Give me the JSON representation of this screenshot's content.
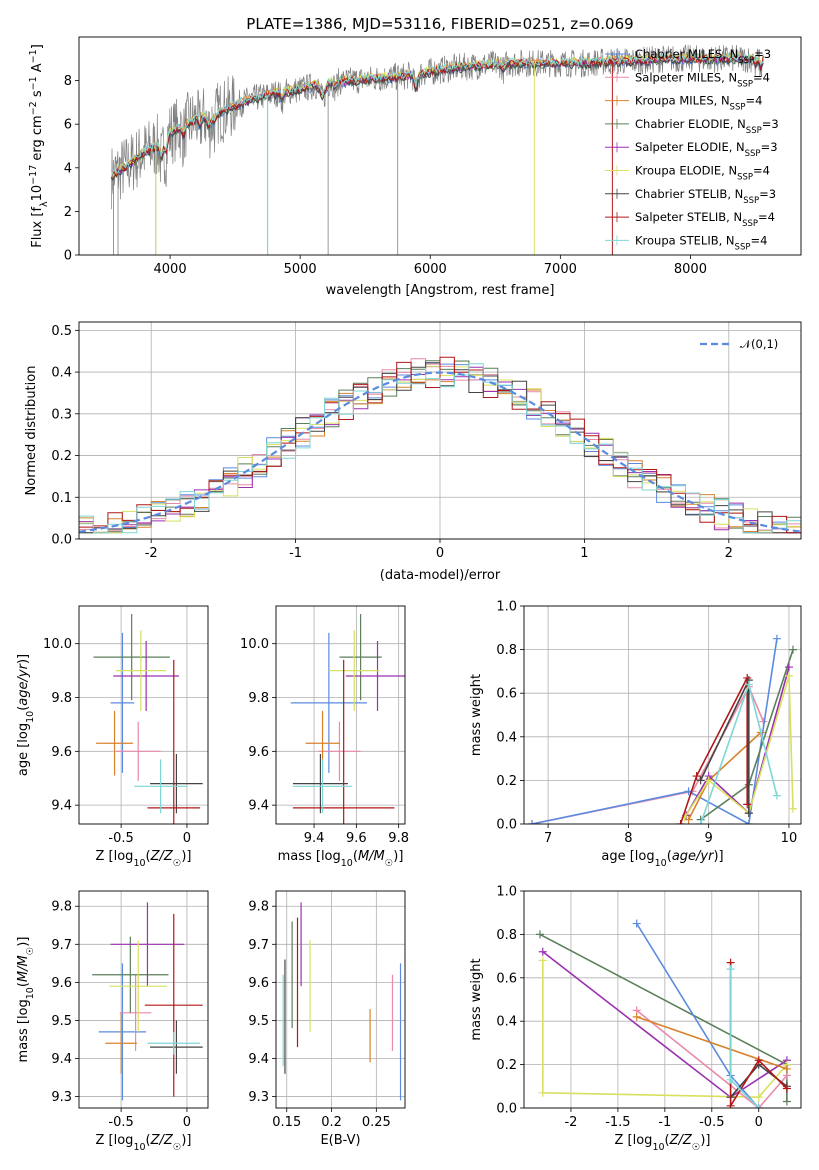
{
  "figure_title": "PLATE=1386, MJD=53116, FIBERID=0251, z=0.069",
  "colors": {
    "Chabrier MILES": "#5b8be0",
    "Salpeter MILES": "#e88aa8",
    "Kroupa MILES": "#d9822b",
    "Chabrier ELODIE": "#5a7f5a",
    "Salpeter ELODIE": "#9b30b0",
    "Kroupa ELODIE": "#d8e060",
    "Chabrier STELIB": "#444444",
    "Salpeter STELIB": "#b01818",
    "Kroupa STELIB": "#7fd6d6",
    "spectrum": "#808080",
    "gauss": "#5b8be0",
    "orange": "#e8701a"
  },
  "chart_data": [
    {
      "id": "spectrum",
      "type": "line",
      "title": "PLATE=1386, MJD=53116, FIBERID=0251, z=0.069",
      "xlabel": "wavelength [Angstrom, rest frame]",
      "ylabel": "Flux [f_λ 10^-17 erg cm^-2 s^-1 A^-1]",
      "xlim": [
        3300,
        8850
      ],
      "ylim": [
        0,
        10
      ],
      "xticks": [
        4000,
        5000,
        6000,
        7000,
        8000
      ],
      "yticks": [
        0,
        2,
        4,
        6,
        8
      ],
      "grid": false,
      "legend_position": "right",
      "legend": [
        {
          "label": "Chabrier MILES, N",
          "sub": "SSP",
          "suffix": "=3"
        },
        {
          "label": "Salpeter MILES, N",
          "sub": "SSP",
          "suffix": "=4"
        },
        {
          "label": "Kroupa MILES, N",
          "sub": "SSP",
          "suffix": "=4"
        },
        {
          "label": "Chabrier ELODIE, N",
          "sub": "SSP",
          "suffix": "=3"
        },
        {
          "label": "Salpeter ELODIE, N",
          "sub": "SSP",
          "suffix": "=3"
        },
        {
          "label": "Kroupa ELODIE, N",
          "sub": "SSP",
          "suffix": "=4"
        },
        {
          "label": "Chabrier STELIB, N",
          "sub": "SSP",
          "suffix": "=3"
        },
        {
          "label": "Salpeter STELIB, N",
          "sub": "SSP",
          "suffix": "=4"
        },
        {
          "label": "Kroupa STELIB, N",
          "sub": "SSP",
          "suffix": "=4"
        }
      ],
      "continuum": [
        [
          3550,
          3.6
        ],
        [
          3620,
          3.9
        ],
        [
          3700,
          4.2
        ],
        [
          3800,
          4.7
        ],
        [
          3900,
          5.0
        ],
        [
          4000,
          5.6
        ],
        [
          4200,
          6.2
        ],
        [
          4400,
          6.6
        ],
        [
          4600,
          7.1
        ],
        [
          4800,
          7.4
        ],
        [
          5000,
          7.6
        ],
        [
          5200,
          7.9
        ],
        [
          5400,
          8.0
        ],
        [
          5600,
          8.1
        ],
        [
          5800,
          8.2
        ],
        [
          6000,
          8.4
        ],
        [
          6200,
          8.6
        ],
        [
          6400,
          8.7
        ],
        [
          6600,
          8.8
        ],
        [
          6800,
          8.8
        ],
        [
          7000,
          8.8
        ],
        [
          7200,
          8.8
        ],
        [
          7400,
          8.9
        ],
        [
          7600,
          8.9
        ],
        [
          7800,
          9.0
        ],
        [
          8000,
          9.0
        ],
        [
          8200,
          9.0
        ],
        [
          8400,
          9.0
        ],
        [
          8550,
          9.0
        ]
      ]
    },
    {
      "id": "residuals",
      "type": "line",
      "xlabel": "(data-model)/error",
      "ylabel": "Normed distribution",
      "xlim": [
        -2.5,
        2.5
      ],
      "ylim": [
        0,
        0.52
      ],
      "xticks": [
        -2,
        -1,
        0,
        1,
        2
      ],
      "yticks": [
        0.0,
        0.1,
        0.2,
        0.3,
        0.4,
        0.5
      ],
      "grid": true,
      "legend_position": "top-right",
      "legend_label": "𝒩(0,1)",
      "gauss": {
        "mean": 0,
        "sigma": 1
      }
    },
    {
      "id": "age_vs_Z",
      "type": "scatter",
      "xlabel": "Z [log10(Z/Z☉)]",
      "ylabel": "age  [log10(age/yr)]",
      "xlim": [
        -0.82,
        0.16
      ],
      "ylim": [
        9.33,
        10.14
      ],
      "xticks": [
        -0.5,
        0.0
      ],
      "yticks": [
        9.4,
        9.6,
        9.8,
        10.0
      ],
      "grid": true,
      "points": [
        {
          "model": "Chabrier MILES",
          "x": -0.49,
          "xerr": 0.09,
          "y": 9.78,
          "yerr": 0.26
        },
        {
          "model": "Salpeter MILES",
          "x": -0.37,
          "xerr": 0.17,
          "y": 9.6,
          "yerr": 0.11
        },
        {
          "model": "Kroupa MILES",
          "x": -0.55,
          "xerr": 0.14,
          "y": 9.63,
          "yerr": 0.12
        },
        {
          "model": "Chabrier ELODIE",
          "x": -0.42,
          "xerr": 0.29,
          "y": 9.95,
          "yerr": 0.16
        },
        {
          "model": "Salpeter ELODIE",
          "x": -0.31,
          "xerr": 0.25,
          "y": 9.88,
          "yerr": 0.13
        },
        {
          "model": "Kroupa ELODIE",
          "x": -0.35,
          "xerr": 0.19,
          "y": 9.9,
          "yerr": 0.15
        },
        {
          "model": "Chabrier STELIB",
          "x": -0.08,
          "xerr": 0.2,
          "y": 9.48,
          "yerr": 0.11
        },
        {
          "model": "Salpeter STELIB",
          "x": -0.1,
          "xerr": 0.2,
          "y": 9.39,
          "yerr": 0.55
        },
        {
          "model": "Kroupa STELIB",
          "x": -0.2,
          "xerr": 0.2,
          "y": 9.47,
          "yerr": 0.1
        }
      ]
    },
    {
      "id": "age_vs_mass",
      "type": "scatter",
      "xlabel": "mass [log10(M/M☉)]",
      "xlim": [
        9.22,
        9.83
      ],
      "ylim": [
        9.33,
        10.14
      ],
      "xticks": [
        9.4,
        9.6,
        9.8
      ],
      "yticks": [
        9.4,
        9.6,
        9.8,
        10.0
      ],
      "grid": true,
      "points": [
        {
          "model": "Chabrier MILES",
          "x": 9.47,
          "xerr": 0.18,
          "y": 9.78,
          "yerr": 0.26
        },
        {
          "model": "Salpeter MILES",
          "x": 9.52,
          "xerr": 0.1,
          "y": 9.6,
          "yerr": 0.11
        },
        {
          "model": "Kroupa MILES",
          "x": 9.44,
          "xerr": 0.08,
          "y": 9.63,
          "yerr": 0.12
        },
        {
          "model": "Chabrier ELODIE",
          "x": 9.62,
          "xerr": 0.1,
          "y": 9.95,
          "yerr": 0.16
        },
        {
          "model": "Salpeter ELODIE",
          "x": 9.7,
          "xerr": 0.15,
          "y": 9.88,
          "yerr": 0.13
        },
        {
          "model": "Kroupa ELODIE",
          "x": 9.59,
          "xerr": 0.12,
          "y": 9.9,
          "yerr": 0.15
        },
        {
          "model": "Chabrier STELIB",
          "x": 9.43,
          "xerr": 0.13,
          "y": 9.48,
          "yerr": 0.11
        },
        {
          "model": "Salpeter STELIB",
          "x": 9.54,
          "xerr": 0.24,
          "y": 9.39,
          "yerr": 0.55
        },
        {
          "model": "Kroupa STELIB",
          "x": 9.44,
          "xerr": 0.14,
          "y": 9.47,
          "yerr": 0.1
        }
      ]
    },
    {
      "id": "weight_vs_age",
      "type": "line",
      "xlabel": "age  [log10(age/yr)]",
      "ylabel": "mass weight",
      "xlim": [
        6.7,
        10.15
      ],
      "ylim": [
        0,
        1.0
      ],
      "xticks": [
        7,
        8,
        9,
        10
      ],
      "yticks": [
        0.0,
        0.2,
        0.4,
        0.6,
        0.8,
        1.0
      ],
      "grid": true,
      "series": [
        {
          "model": "Salpeter MILES",
          "x": [
            6.8,
            8.8,
            9.5,
            9.68
          ],
          "y": [
            0.0,
            0.15,
            0.63,
            0.47
          ]
        },
        {
          "model": "Chabrier MILES",
          "x": [
            6.8,
            8.75,
            9.5,
            9.85
          ],
          "y": [
            0.0,
            0.15,
            0.0,
            0.85
          ]
        },
        {
          "model": "Kroupa MILES",
          "x": [
            8.75,
            9.0,
            9.65
          ],
          "y": [
            0.02,
            0.2,
            0.42
          ]
        },
        {
          "model": "Chabrier ELODIE",
          "x": [
            8.9,
            9.5,
            10.05
          ],
          "y": [
            0.02,
            0.18,
            0.8
          ]
        },
        {
          "model": "Salpeter ELODIE",
          "x": [
            8.72,
            9.0,
            9.5,
            10.0
          ],
          "y": [
            0.04,
            0.22,
            0.05,
            0.72
          ]
        },
        {
          "model": "Kroupa ELODIE",
          "x": [
            8.7,
            9.0,
            9.5,
            10.0,
            10.05
          ],
          "y": [
            0.03,
            0.2,
            0.05,
            0.68,
            0.07
          ]
        },
        {
          "model": "Chabrier STELIB",
          "x": [
            8.9,
            9.5,
            9.5
          ],
          "y": [
            0.2,
            0.66,
            0.05
          ]
        },
        {
          "model": "Salpeter STELIB",
          "x": [
            8.65,
            8.85,
            9.48,
            9.48
          ],
          "y": [
            0.0,
            0.22,
            0.67,
            0.09
          ]
        },
        {
          "model": "Kroupa STELIB",
          "x": [
            8.9,
            9.5,
            9.85
          ],
          "y": [
            0.0,
            0.64,
            0.13
          ]
        }
      ]
    },
    {
      "id": "mass_vs_Z",
      "type": "scatter",
      "xlabel": "Z [log10(Z/Z☉)]",
      "ylabel": "mass [log10(M/M☉)]",
      "xlim": [
        -0.82,
        0.16
      ],
      "ylim": [
        9.27,
        9.84
      ],
      "xticks": [
        -0.5,
        0.0
      ],
      "yticks": [
        9.3,
        9.4,
        9.5,
        9.6,
        9.7,
        9.8
      ],
      "grid": true,
      "points": [
        {
          "model": "Chabrier MILES",
          "x": -0.49,
          "xerr": 0.18,
          "y": 9.47,
          "yerr": 0.18
        },
        {
          "model": "Salpeter MILES",
          "x": -0.39,
          "xerr": 0.12,
          "y": 9.52,
          "yerr": 0.1
        },
        {
          "model": "Kroupa MILES",
          "x": -0.5,
          "xerr": 0.12,
          "y": 9.44,
          "yerr": 0.08
        },
        {
          "model": "Chabrier ELODIE",
          "x": -0.43,
          "xerr": 0.29,
          "y": 9.62,
          "yerr": 0.1
        },
        {
          "model": "Salpeter ELODIE",
          "x": -0.3,
          "xerr": 0.28,
          "y": 9.7,
          "yerr": 0.11
        },
        {
          "model": "Kroupa ELODIE",
          "x": -0.37,
          "xerr": 0.22,
          "y": 9.59,
          "yerr": 0.12
        },
        {
          "model": "Chabrier STELIB",
          "x": -0.08,
          "xerr": 0.2,
          "y": 9.43,
          "yerr": 0.07
        },
        {
          "model": "Salpeter STELIB",
          "x": -0.1,
          "xerr": 0.22,
          "y": 9.54,
          "yerr": 0.24
        },
        {
          "model": "Kroupa STELIB",
          "x": -0.1,
          "xerr": 0.2,
          "y": 9.44,
          "yerr": 0.03
        }
      ]
    },
    {
      "id": "mass_vs_EBV",
      "type": "scatter",
      "xlabel": "E(B-V)",
      "xlim": [
        0.138,
        0.282
      ],
      "ylim": [
        9.27,
        9.84
      ],
      "xticks": [
        0.15,
        0.2,
        0.25
      ],
      "yticks": [
        9.3,
        9.4,
        9.5,
        9.6,
        9.7,
        9.8
      ],
      "grid": true,
      "points": [
        {
          "model": "Chabrier MILES",
          "x": 0.277,
          "xerr": 0,
          "y": 9.47,
          "yerr": 0.18
        },
        {
          "model": "Salpeter MILES",
          "x": 0.268,
          "xerr": 0,
          "y": 9.52,
          "yerr": 0.1
        },
        {
          "model": "Kroupa MILES",
          "x": 0.243,
          "xerr": 0,
          "y": 9.46,
          "yerr": 0.07
        },
        {
          "model": "Chabrier ELODIE",
          "x": 0.156,
          "xerr": 0,
          "y": 9.62,
          "yerr": 0.14
        },
        {
          "model": "Salpeter ELODIE",
          "x": 0.166,
          "xerr": 0,
          "y": 9.7,
          "yerr": 0.11
        },
        {
          "model": "Kroupa ELODIE",
          "x": 0.176,
          "xerr": 0,
          "y": 9.59,
          "yerr": 0.12
        },
        {
          "model": "Chabrier STELIB",
          "x": 0.148,
          "xerr": 0,
          "y": 9.51,
          "yerr": 0.15
        },
        {
          "model": "Salpeter STELIB",
          "x": 0.162,
          "xerr": 0,
          "y": 9.6,
          "yerr": 0.17
        },
        {
          "model": "Kroupa STELIB",
          "x": 0.146,
          "xerr": 0,
          "y": 9.5,
          "yerr": 0.12
        }
      ]
    },
    {
      "id": "weight_vs_Z",
      "type": "line",
      "xlabel": "Z [log10(Z/Z☉)]",
      "ylabel": "mass weight",
      "xlim": [
        -2.5,
        0.45
      ],
      "ylim": [
        0,
        1.0
      ],
      "xticks": [
        -2.0,
        -1.5,
        -1.0,
        -0.5,
        0.0
      ],
      "yticks": [
        0.0,
        0.2,
        0.4,
        0.6,
        0.8,
        1.0
      ],
      "grid": true,
      "series": [
        {
          "model": "Chabrier ELODIE",
          "x": [
            -2.33,
            0.3,
            0.3
          ],
          "y": [
            0.8,
            0.2,
            0.03
          ]
        },
        {
          "model": "Salpeter ELODIE",
          "x": [
            -2.3,
            -0.3,
            0.3
          ],
          "y": [
            0.72,
            0.05,
            0.22
          ]
        },
        {
          "model": "Kroupa ELODIE",
          "x": [
            -2.3,
            -2.3,
            0.0,
            0.3
          ],
          "y": [
            0.68,
            0.07,
            0.05,
            0.2
          ]
        },
        {
          "model": "Chabrier MILES",
          "x": [
            -1.3,
            -0.3,
            0.0
          ],
          "y": [
            0.85,
            0.15,
            0.0
          ]
        },
        {
          "model": "Salpeter MILES",
          "x": [
            -1.3,
            0.0,
            0.3
          ],
          "y": [
            0.45,
            0.0,
            0.15
          ]
        },
        {
          "model": "Kroupa MILES",
          "x": [
            -1.3,
            0.3
          ],
          "y": [
            0.42,
            0.18
          ]
        },
        {
          "model": "Chabrier STELIB",
          "x": [
            -0.3,
            0.0,
            0.3
          ],
          "y": [
            0.05,
            0.2,
            0.1
          ]
        },
        {
          "model": "Salpeter STELIB",
          "x": [
            -0.3,
            -0.3,
            0.0,
            0.3
          ],
          "y": [
            0.67,
            0.01,
            0.22,
            0.09
          ]
        },
        {
          "model": "Kroupa STELIB",
          "x": [
            -0.3,
            -0.3,
            0.0
          ],
          "y": [
            0.64,
            0.13,
            0.0
          ]
        }
      ]
    }
  ]
}
